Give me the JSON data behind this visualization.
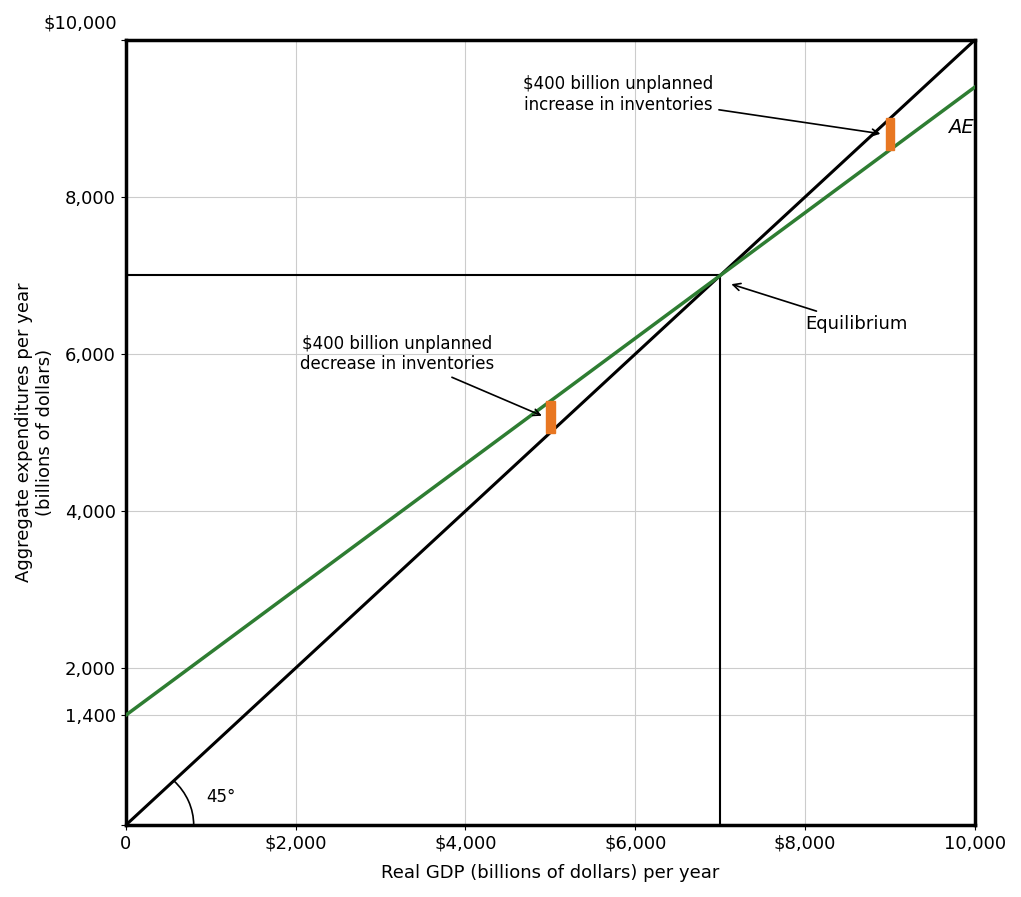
{
  "xlim": [
    0,
    10000
  ],
  "ylim": [
    0,
    10000
  ],
  "xticks": [
    0,
    2000,
    4000,
    6000,
    8000,
    10000
  ],
  "yticks": [
    0,
    1400,
    2000,
    4000,
    6000,
    8000,
    10000
  ],
  "xlabel": "Real GDP (billions of dollars) per year",
  "ylabel": "Aggregate expenditures per year\n(billions of dollars)",
  "ae_intercept": 1400,
  "ae_slope": 0.8,
  "equilibrium_x": 7000,
  "equilibrium_y": 7000,
  "point1_x": 5000,
  "point2_x": 9000,
  "orange_color": "#E87722",
  "ae_line_color": "#2E7D32",
  "line45_color": "#000000",
  "grid_color": "#CCCCCC",
  "annotation_text_upper": "$400 billion unplanned\nincrease in inventories",
  "annotation_text_lower": "$400 billion unplanned\ndecrease in inventories",
  "ae_label": "AE",
  "equilibrium_label": "Equilibrium",
  "angle_label": "45°",
  "background_color": "#FFFFFF",
  "bar_width_x": 100,
  "y_top_label": "$10,000",
  "x_tick_labels": [
    "0",
    "$2,000",
    "$4,000",
    "$6,000",
    "$8,000",
    "10,000"
  ],
  "y_tick_labels": [
    "",
    "1,400",
    "2,000",
    "4,000",
    "6,000",
    "8,000",
    ""
  ]
}
